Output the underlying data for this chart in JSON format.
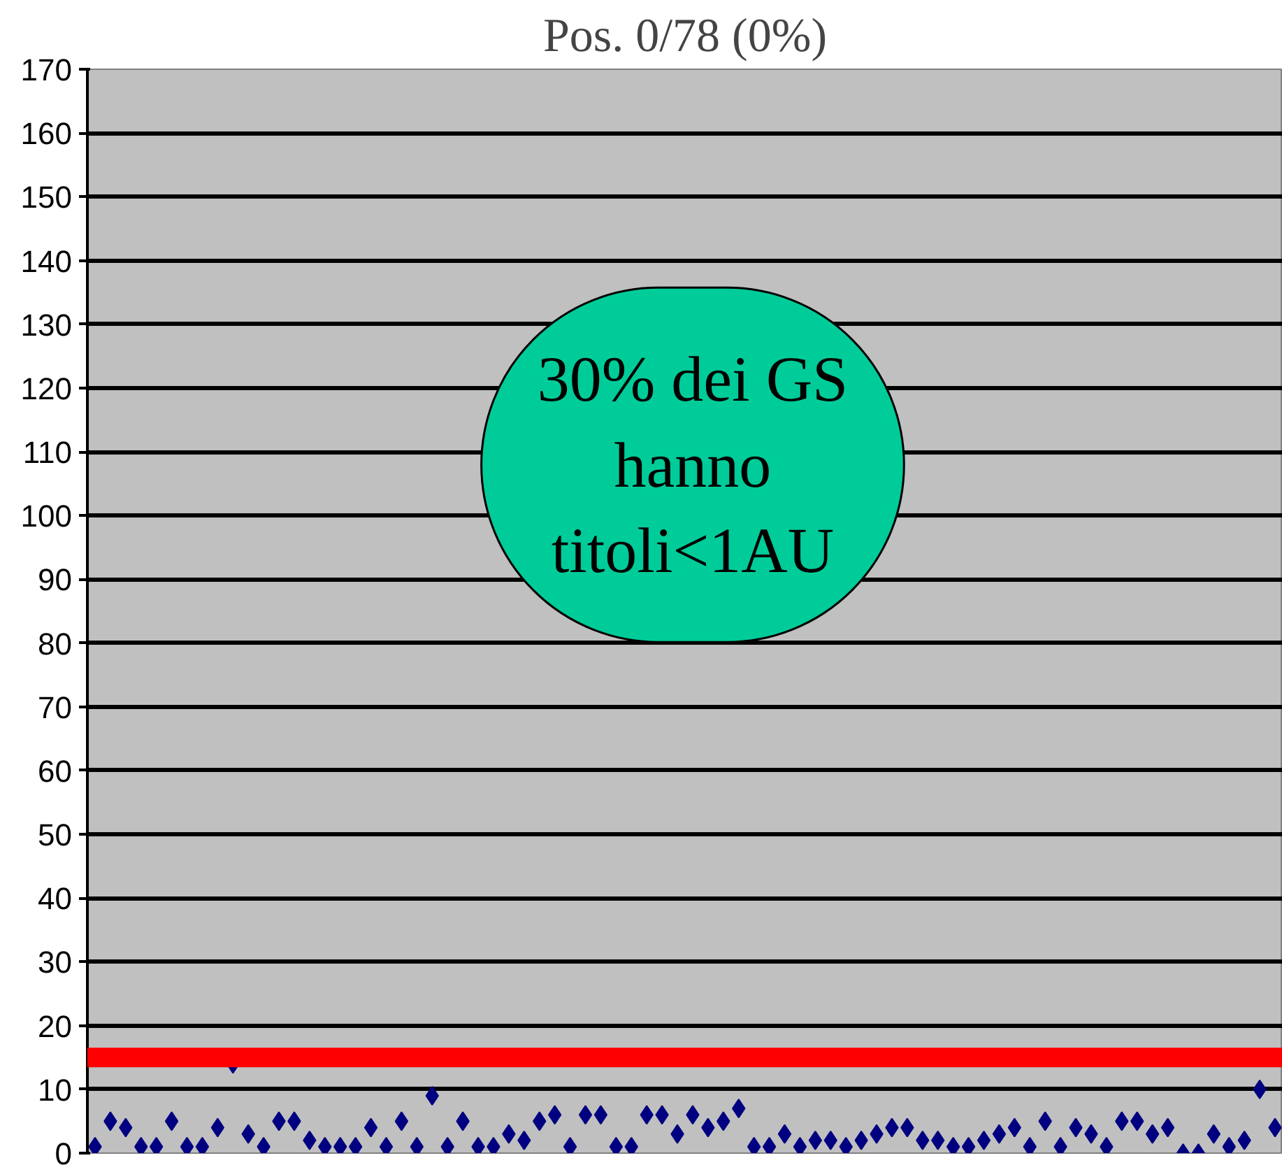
{
  "chart_data": {
    "type": "scatter",
    "title": "Pos. 0/78 (0%)",
    "categories": [
      null,
      null,
      null,
      null,
      null,
      null,
      null,
      null,
      null,
      null,
      null,
      null,
      null,
      null,
      null,
      null,
      null,
      null,
      null,
      null,
      null,
      null,
      null,
      null,
      null,
      null,
      null,
      null,
      null,
      null,
      null,
      null,
      null,
      null,
      null,
      null,
      null,
      null,
      null,
      null,
      null,
      null,
      null,
      null,
      null,
      null,
      null,
      null,
      null,
      null,
      null,
      null,
      null,
      null,
      null,
      null,
      null,
      null,
      null,
      null,
      null,
      null,
      null,
      null,
      null,
      null,
      null,
      null,
      null,
      null,
      null,
      null,
      null,
      null,
      null,
      null,
      null,
      null
    ],
    "series": [
      {
        "color": "#000080",
        "values": [
          1,
          5,
          4,
          1,
          1,
          5,
          1,
          1,
          4,
          14,
          3,
          1,
          5,
          5,
          2,
          1,
          1,
          1,
          4,
          1,
          5,
          1,
          9,
          1,
          5,
          1,
          1,
          3,
          2,
          5,
          6,
          1,
          6,
          6,
          1,
          1,
          6,
          6,
          3,
          6,
          4,
          5,
          7,
          1,
          1,
          3,
          1,
          2,
          2,
          1,
          2,
          3,
          4,
          4,
          2,
          2,
          1,
          1,
          2,
          3,
          4,
          1,
          5,
          1,
          4,
          3,
          1,
          5,
          5,
          3,
          4,
          0,
          0,
          3,
          1,
          2,
          10,
          4
        ]
      }
    ],
    "marker": "diamond",
    "ylim": [
      0,
      170
    ],
    "yticks": [
      0,
      10,
      20,
      30,
      40,
      50,
      60,
      70,
      80,
      90,
      100,
      110,
      120,
      130,
      140,
      150,
      160,
      170
    ],
    "grid": "y",
    "tick_labels": "y",
    "ref_lines": [
      {
        "axis": "y",
        "value": 15,
        "color": "#ff0000"
      }
    ],
    "annotations": [
      "30% dei GS hanno titoli<1AU"
    ]
  }
}
